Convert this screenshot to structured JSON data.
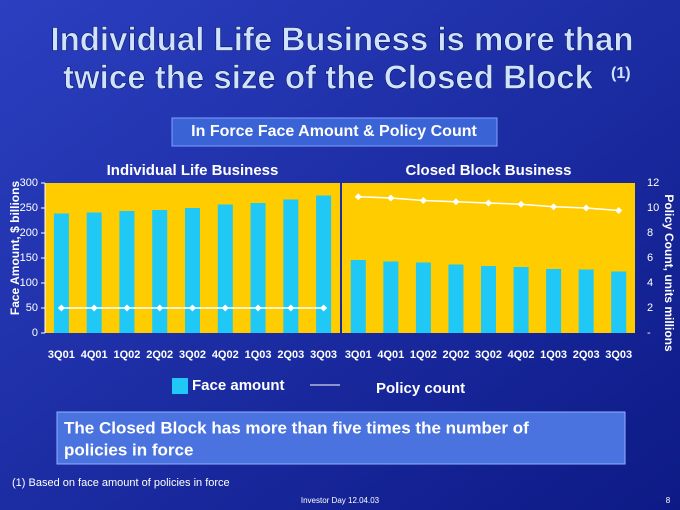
{
  "slide": {
    "title_lines": [
      "Individual Life Business is more than",
      "twice the size of the Closed Block"
    ],
    "title_note": "(1)",
    "subtitle": "In Force Face Amount & Policy Count",
    "callout_lines": [
      "The Closed Block has more than five times the number of",
      "policies in force"
    ],
    "footnote": "(1) Based on face amount of policies in force",
    "footer": "Investor Day 12.04.03",
    "page": "8"
  },
  "chart_data": [
    {
      "type": "bar",
      "title": "Individual Life Business",
      "y_label": "Face Amount, $ billions",
      "categories": [
        "3Q01",
        "4Q01",
        "1Q02",
        "2Q02",
        "3Q02",
        "4Q02",
        "1Q03",
        "2Q03",
        "3Q03"
      ],
      "series": [
        {
          "name": "Face amount",
          "type": "bar",
          "color": "#1fc8f5",
          "values": [
            239,
            241,
            244,
            246,
            250,
            257,
            260,
            267,
            275
          ]
        },
        {
          "name": "Policy count",
          "type": "line",
          "axis": "y2",
          "color": "#ffffff",
          "values": [
            2.0,
            2.0,
            2.0,
            2.0,
            2.0,
            2.0,
            2.0,
            2.0,
            2.0
          ]
        }
      ],
      "ylim": [
        0,
        300
      ],
      "yticks": [
        0,
        50,
        100,
        150,
        200,
        250,
        300
      ],
      "y2lim": [
        0,
        12
      ]
    },
    {
      "type": "bar",
      "title": "Closed Block Business",
      "y2_label": "Policy Count, units millions",
      "categories": [
        "3Q01",
        "4Q01",
        "1Q02",
        "2Q02",
        "3Q02",
        "4Q02",
        "1Q03",
        "2Q03",
        "3Q03"
      ],
      "series": [
        {
          "type": "bar",
          "color": "#1fc8f5",
          "values": [
            146,
            143,
            141,
            137,
            134,
            132,
            128,
            127,
            123
          ]
        },
        {
          "type": "line",
          "axis": "y2",
          "color": "#ffffff",
          "values": [
            10.9,
            10.8,
            10.6,
            10.5,
            10.4,
            10.3,
            10.1,
            10.0,
            9.8
          ]
        }
      ],
      "ylim": [
        0,
        300
      ],
      "y2lim": [
        0,
        12
      ],
      "y2ticks": [
        {
          "value": 0,
          "label": "-"
        },
        2,
        4,
        6,
        8,
        10,
        12
      ]
    }
  ]
}
